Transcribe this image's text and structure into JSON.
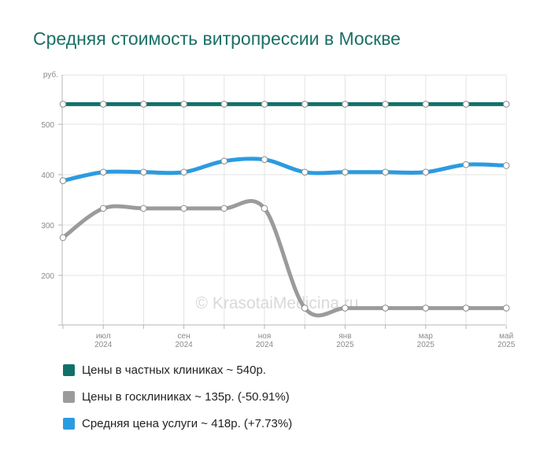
{
  "chart_data": {
    "type": "line",
    "title": "Средняя стоимость витропрессии в Москве",
    "unit_label": "руб.",
    "watermark": "© KrasotaiMedicina.ru",
    "ylim": [
      100,
      580
    ],
    "y_ticks": [
      200,
      300,
      400,
      500
    ],
    "grid": true,
    "legend_position": "bottom-left",
    "x_ticks": [
      {
        "index": 1,
        "line1": "июл",
        "line2": "2024"
      },
      {
        "index": 3,
        "line1": "сен",
        "line2": "2024"
      },
      {
        "index": 5,
        "line1": "ноя",
        "line2": "2024"
      },
      {
        "index": 7,
        "line1": "янв",
        "line2": "2025"
      },
      {
        "index": 9,
        "line1": "мар",
        "line2": "2025"
      },
      {
        "index": 11,
        "line1": "май",
        "line2": "2025"
      }
    ],
    "series": [
      {
        "key": "private",
        "color": "#12706a",
        "values": [
          540,
          540,
          540,
          540,
          540,
          540,
          540,
          540,
          540,
          540,
          540,
          540
        ]
      },
      {
        "key": "public",
        "color": "#9b9b9b",
        "values": [
          275,
          333,
          333,
          333,
          333,
          333,
          135,
          135,
          135,
          135,
          135,
          135
        ]
      },
      {
        "key": "average",
        "color": "#2b9be0",
        "values": [
          388,
          405,
          405,
          405,
          427,
          430,
          405,
          405,
          405,
          405,
          420,
          418
        ]
      }
    ]
  },
  "legend": [
    {
      "label": "Цены в частных клиниках ~ 540р.",
      "color": "#12706a"
    },
    {
      "label": "Цены в госклиниках ~ 135р. (-50.91%)",
      "color": "#9b9b9b"
    },
    {
      "label": "Средняя цена услуги ~ 418р. (+7.73%)",
      "color": "#2b9be0"
    }
  ]
}
